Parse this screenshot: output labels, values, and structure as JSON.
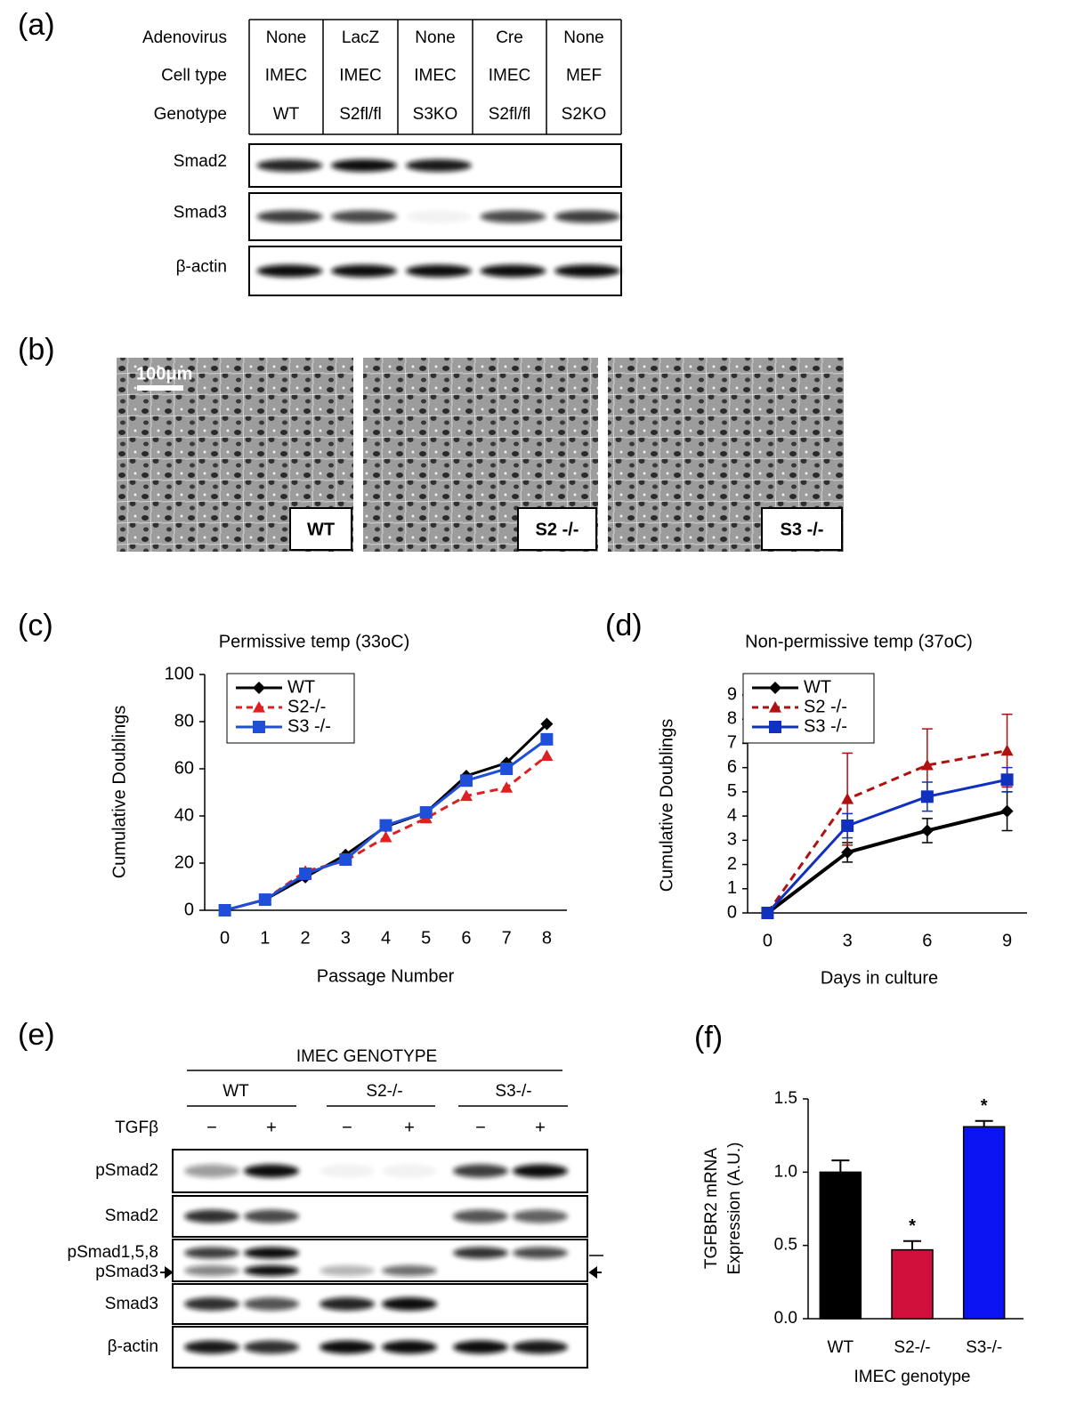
{
  "panel_labels": [
    "(a)",
    "(b)",
    "(c)",
    "(d)",
    "(e)",
    "(f)"
  ],
  "panel_a": {
    "row_labels": [
      "Adenovirus",
      "Cell type",
      "Genotype"
    ],
    "table": [
      [
        "None",
        "LacZ",
        "None",
        "Cre",
        "None"
      ],
      [
        "IMEC",
        "IMEC",
        "IMEC",
        "IMEC",
        "MEF"
      ],
      [
        "WT",
        "S2fl/fl",
        "S3KO",
        "S2fl/fl",
        "S2KO"
      ]
    ],
    "blots": [
      "Smad2",
      "Smad3",
      "β-actin"
    ]
  },
  "panel_b": {
    "scale_bar": "100μm",
    "images": [
      "WT",
      "S2 -/-",
      "S3 -/-"
    ]
  },
  "panel_e": {
    "header": "IMEC GENOTYPE",
    "groups": [
      "WT",
      "S2-/-",
      "S3-/-"
    ],
    "treatment": "TGFβ",
    "signs": [
      "−",
      "+",
      "−",
      "+",
      "−",
      "+"
    ],
    "blots": [
      "pSmad2",
      "Smad2",
      "pSmad1,5,8",
      "pSmad3",
      "Smad3",
      "β-actin"
    ]
  },
  "chart_data": [
    {
      "type": "line",
      "title": "Permissive temp (33oC)",
      "xlabel": "Passage Number",
      "ylabel": "Cumulative Doublings",
      "x": [
        0,
        1,
        2,
        3,
        4,
        5,
        6,
        7,
        8
      ],
      "xlim": [
        -0.5,
        8.5
      ],
      "xticks": [
        0,
        1,
        2,
        3,
        4,
        5,
        6,
        7,
        8
      ],
      "ylim": [
        0,
        100
      ],
      "yticks": [
        0,
        20,
        40,
        60,
        80,
        100
      ],
      "legend": "upper left",
      "series": [
        {
          "name": "WT",
          "color": "#000000",
          "marker": "diamond",
          "linestyle": "solid",
          "values": [
            0,
            4.5,
            14,
            23.5,
            35.5,
            41.5,
            57,
            62.5,
            79
          ]
        },
        {
          "name": "S2-/-",
          "color": "#e02020",
          "marker": "triangle",
          "linestyle": "dashed",
          "values": [
            0,
            4.5,
            16.5,
            21,
            31,
            39,
            48.5,
            52,
            65.5
          ]
        },
        {
          "name": "S3 -/-",
          "color": "#1f4fd8",
          "marker": "square",
          "linestyle": "solid",
          "values": [
            0,
            4.5,
            15.5,
            21.5,
            36,
            41.5,
            55,
            60,
            72.5
          ]
        }
      ]
    },
    {
      "type": "line",
      "title": "Non-permissive temp (37oC)",
      "xlabel": "Days in culture",
      "ylabel": "Cumulative Doublings",
      "x": [
        0,
        3,
        6,
        9
      ],
      "xlim": [
        -0.75,
        9.75
      ],
      "xticks": [
        0,
        3,
        6,
        9
      ],
      "ylim": [
        0,
        9
      ],
      "yticks": [
        0,
        1,
        2,
        3,
        4,
        5,
        6,
        7,
        8,
        9
      ],
      "legend": "upper left",
      "series": [
        {
          "name": "WT",
          "color": "#000000",
          "marker": "diamond",
          "linestyle": "solid",
          "values": [
            0,
            2.5,
            3.4,
            4.2
          ],
          "errors": [
            0,
            0.4,
            0.5,
            0.8
          ]
        },
        {
          "name": "S2 -/-",
          "color": "#b01010",
          "marker": "triangle",
          "linestyle": "dashed",
          "values": [
            0,
            4.7,
            6.1,
            6.7
          ],
          "errors": [
            0,
            1.9,
            1.5,
            1.5
          ]
        },
        {
          "name": "S3 -/-",
          "color": "#1030c0",
          "marker": "square",
          "linestyle": "solid",
          "values": [
            0,
            3.6,
            4.8,
            5.5
          ],
          "errors": [
            0,
            0.5,
            0.6,
            0.5
          ]
        }
      ]
    },
    {
      "type": "bar",
      "xlabel": "IMEC genotype",
      "ylabel": [
        "TGFBR2 mRNA",
        "Expression (A.U.)"
      ],
      "categories": [
        "WT",
        "S2-/-",
        "S3-/-"
      ],
      "values": [
        1.0,
        0.47,
        1.31
      ],
      "errors": [
        0.08,
        0.06,
        0.04
      ],
      "colors": [
        "#000000",
        "#d0103a",
        "#0a14f0"
      ],
      "ylim": [
        0,
        1.5
      ],
      "yticks": [
        {
          "value": 0,
          "label": "0.0"
        },
        {
          "value": 0.5,
          "label": "0.5"
        },
        {
          "value": 1,
          "label": "1.0"
        },
        {
          "value": 1.5,
          "label": "1.5"
        }
      ],
      "annotations": [
        {
          "text": "*",
          "x": "S2-/-"
        },
        {
          "text": "*",
          "x": "S3-/-"
        }
      ]
    }
  ]
}
